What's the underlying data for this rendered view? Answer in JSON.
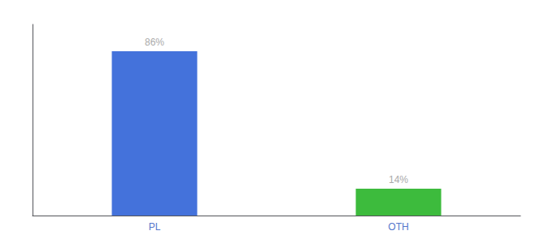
{
  "chart_data": {
    "type": "bar",
    "categories": [
      "PL",
      "OTH"
    ],
    "values": [
      86,
      14
    ],
    "value_labels": [
      "86%",
      "14%"
    ],
    "colors": [
      "#4472db",
      "#3dbb3d"
    ],
    "ylim": [
      0,
      100
    ],
    "grid": false,
    "data_labels": true,
    "tick_labels": "x"
  }
}
